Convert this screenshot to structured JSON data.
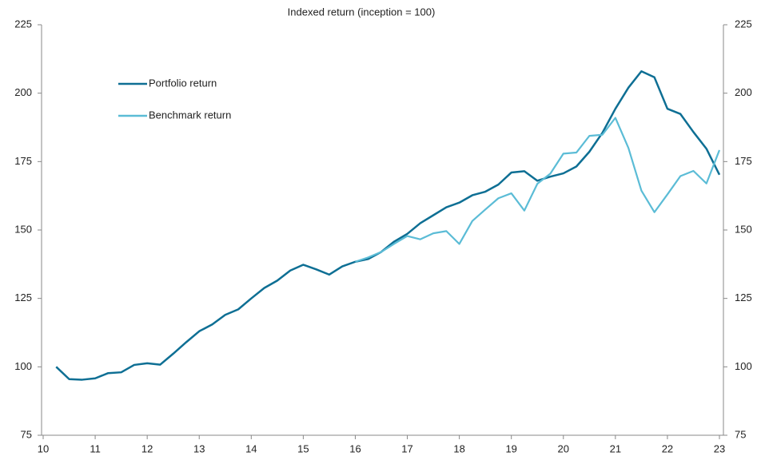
{
  "chart_data": {
    "type": "line",
    "title": "Indexed return (inception = 100)",
    "x": [
      10.25,
      10.5,
      10.75,
      11,
      11.25,
      11.5,
      11.75,
      12,
      12.25,
      12.5,
      12.75,
      13,
      13.25,
      13.5,
      13.75,
      14,
      14.25,
      14.5,
      14.75,
      15,
      15.25,
      15.5,
      15.75,
      16,
      16.25,
      16.5,
      16.75,
      17,
      17.25,
      17.5,
      17.75,
      18,
      18.25,
      18.5,
      18.75,
      19,
      19.25,
      19.5,
      19.75,
      20,
      20.25,
      20.5,
      20.75,
      21,
      21.25,
      21.5,
      21.75,
      22,
      22.25,
      22.5,
      22.75,
      23
    ],
    "series": [
      {
        "name": "Portfolio return",
        "color": "#0e6f94",
        "values": [
          100,
          95.5,
          95.3,
          95.8,
          97.7,
          98,
          100.7,
          101.3,
          100.8,
          104.8,
          109,
          113,
          115.5,
          119,
          121,
          125,
          128.8,
          131.5,
          135.2,
          137.3,
          135.6,
          133.7,
          136.7,
          138.4,
          139.4,
          142,
          145.8,
          148.6,
          152.5,
          155.4,
          158.3,
          160,
          162.7,
          164,
          166.6,
          171,
          171.5,
          168,
          169.5,
          170.7,
          173.2,
          178.6,
          185.5,
          194.3,
          202,
          208,
          205.8,
          194.3,
          192.4,
          185.8,
          179.7,
          170.2
        ]
      },
      {
        "name": "Benchmark return",
        "color": "#5bbcd6",
        "values": [
          null,
          null,
          null,
          null,
          null,
          null,
          null,
          null,
          null,
          null,
          null,
          null,
          null,
          null,
          null,
          null,
          null,
          null,
          null,
          null,
          null,
          null,
          null,
          138.4,
          140,
          142,
          145,
          147.8,
          146.6,
          148.8,
          149.6,
          144.9,
          153.3,
          157.5,
          161.6,
          163.4,
          157.1,
          166.9,
          170.6,
          177.9,
          178.3,
          184.4,
          184.8,
          191,
          180,
          164.4,
          156.5,
          163,
          169.7,
          171.6,
          167,
          179.2
        ]
      }
    ],
    "xlim": [
      10,
      23
    ],
    "xticks": [
      10,
      11,
      12,
      13,
      14,
      15,
      16,
      17,
      18,
      19,
      20,
      21,
      22,
      23
    ],
    "ylim": [
      75,
      225
    ],
    "yticks": [
      75,
      100,
      125,
      150,
      175,
      200,
      225
    ],
    "y2lim": [
      75,
      225
    ],
    "y2ticks": [
      75,
      100,
      125,
      150,
      175,
      200,
      225
    ],
    "legend": "upper-left"
  }
}
